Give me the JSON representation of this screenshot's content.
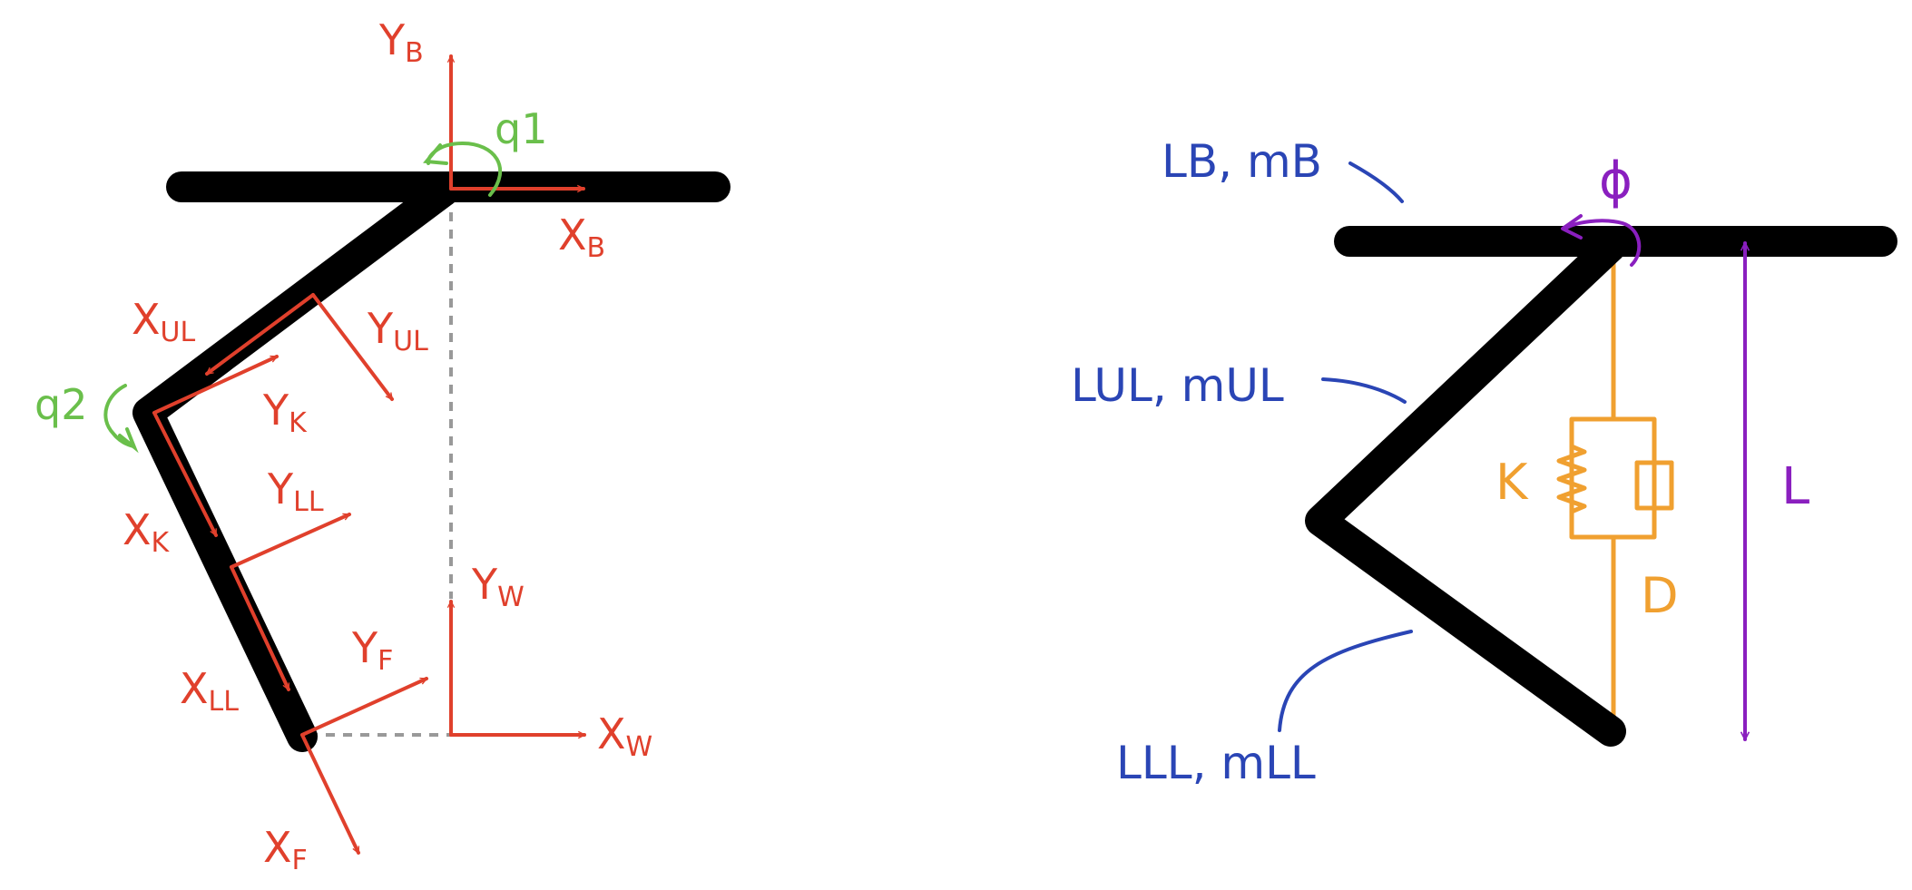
{
  "left_diagram": {
    "frames": {
      "base": {
        "x": "X",
        "x_sub": "B",
        "y": "Y",
        "y_sub": "B"
      },
      "upper_leg": {
        "x": "X",
        "x_sub": "UL",
        "y": "Y",
        "y_sub": "UL"
      },
      "knee": {
        "x": "X",
        "x_sub": "K",
        "y": "Y",
        "y_sub": "K"
      },
      "lower_leg": {
        "x": "X",
        "x_sub": "LL",
        "y": "Y",
        "y_sub": "LL"
      },
      "world": {
        "x": "X",
        "x_sub": "W",
        "y": "Y",
        "y_sub": "W"
      },
      "foot": {
        "x": "X",
        "x_sub": "F",
        "y": "Y",
        "y_sub": "F"
      }
    },
    "joints": {
      "q1": "q1",
      "q2": "q2"
    }
  },
  "right_diagram": {
    "links": {
      "base": "LB, mB",
      "upper_leg": "LUL, mUL",
      "lower_leg": "LLL, mLL"
    },
    "spring": "K",
    "damper": "D",
    "angle": "ϕ",
    "length": "L"
  },
  "colors": {
    "links": "#000000",
    "frames": "#e0402c",
    "joint_angles": "#6abf4b",
    "parameters": "#2a45b5",
    "spring_damper": "#f0a030",
    "leg_length": "#8a1fbf"
  }
}
